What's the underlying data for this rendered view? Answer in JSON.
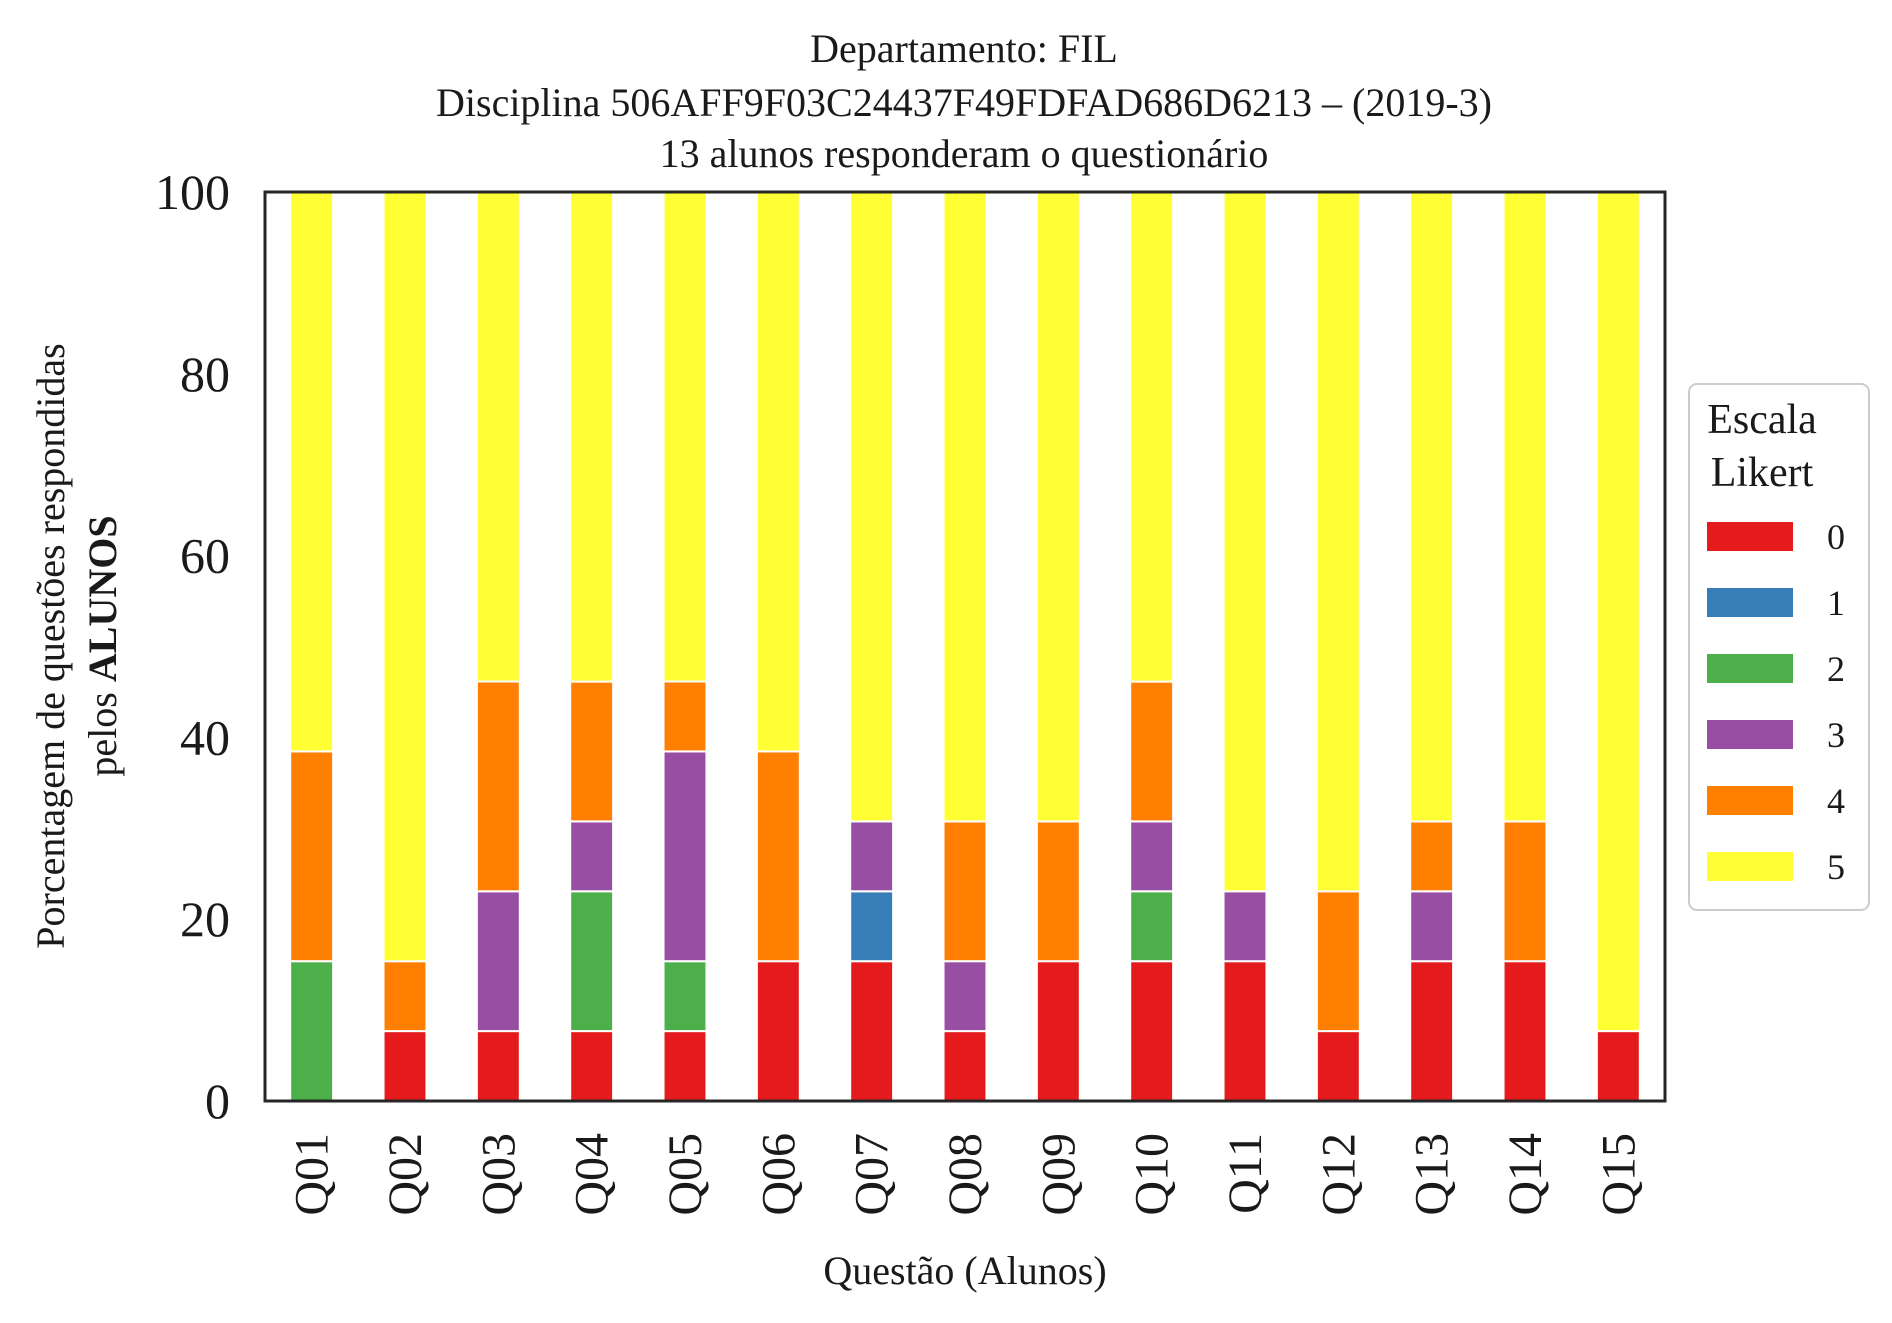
{
  "chart_data": {
    "type": "bar",
    "stacked": true,
    "title_lines": [
      "Departamento: FIL",
      "Disciplina 506AFF9F03C24437F49FDFAD686D6213 – (2019-3)",
      "13 alunos responderam o questionário"
    ],
    "xlabel": "Questão (Alunos)",
    "ylabel_line1": "Porcentagem de questões respondidas",
    "ylabel_line2_prefix": "pelos ",
    "ylabel_line2_bold": "ALUNOS",
    "ylim": [
      0,
      100
    ],
    "yticks": [
      "0",
      "20",
      "40",
      "60",
      "80",
      "100"
    ],
    "categories": [
      "Q01",
      "Q02",
      "Q03",
      "Q04",
      "Q05",
      "Q06",
      "Q07",
      "Q08",
      "Q09",
      "Q10",
      "Q11",
      "Q12",
      "Q13",
      "Q14",
      "Q15"
    ],
    "legend": {
      "title_line1": "Escala",
      "title_line2": "Likert",
      "placement": "center-right"
    },
    "series": [
      {
        "name": "0",
        "color": "#e41a1c",
        "values": [
          0,
          7.69,
          7.69,
          7.69,
          7.69,
          15.38,
          15.38,
          7.69,
          15.38,
          15.38,
          15.38,
          7.69,
          15.38,
          15.38,
          7.69
        ]
      },
      {
        "name": "1",
        "color": "#377eb8",
        "values": [
          0,
          0,
          0,
          0,
          0,
          0,
          7.69,
          0,
          0,
          0,
          0,
          0,
          0,
          0,
          0
        ]
      },
      {
        "name": "2",
        "color": "#4daf4a",
        "values": [
          15.38,
          0,
          0,
          15.38,
          7.69,
          0,
          0,
          0,
          0,
          7.69,
          0,
          0,
          0,
          0,
          0
        ]
      },
      {
        "name": "3",
        "color": "#984ea3",
        "values": [
          0,
          0,
          15.38,
          7.69,
          23.08,
          0,
          7.69,
          7.69,
          0,
          7.69,
          7.69,
          0,
          7.69,
          0,
          0
        ]
      },
      {
        "name": "4",
        "color": "#ff7f00",
        "values": [
          23.08,
          7.69,
          23.08,
          15.38,
          7.69,
          23.08,
          0,
          15.38,
          15.38,
          15.38,
          0,
          15.38,
          7.69,
          15.38,
          0
        ]
      },
      {
        "name": "5",
        "color": "#ffff33",
        "values": [
          61.54,
          84.62,
          53.85,
          53.85,
          53.85,
          61.54,
          69.23,
          69.23,
          69.23,
          53.85,
          76.92,
          76.92,
          69.23,
          69.23,
          92.31
        ]
      }
    ]
  }
}
